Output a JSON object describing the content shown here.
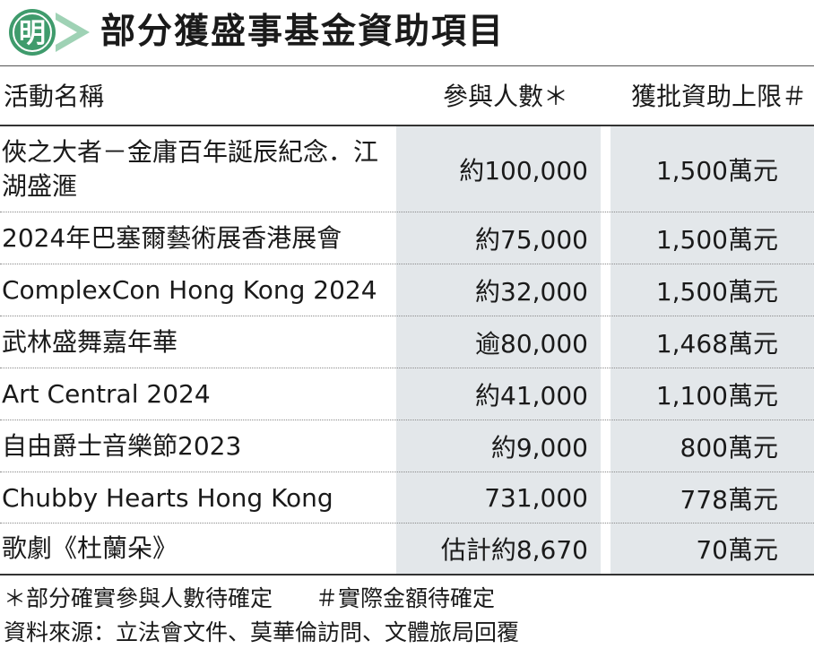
{
  "header": {
    "logo_char": "明",
    "title": "部分獲盛事基金資助項目"
  },
  "table": {
    "headers": {
      "name": "活動名稱",
      "attendance": "參與人數＊",
      "funding": "獲批資助上限＃"
    },
    "rows": [
      {
        "name": "俠之大者－金庸百年誕辰紀念．江湖盛滙",
        "attendance": "約100,000",
        "funding": "1,500萬元"
      },
      {
        "name": "2024年巴塞爾藝術展香港展會",
        "attendance": "約75,000",
        "funding": "1,500萬元"
      },
      {
        "name": "ComplexCon Hong Kong 2024",
        "attendance": "約32,000",
        "funding": "1,500萬元"
      },
      {
        "name": "武林盛舞嘉年華",
        "attendance": "逾80,000",
        "funding": "1,468萬元"
      },
      {
        "name": "Art Central 2024",
        "attendance": "約41,000",
        "funding": "1,100萬元"
      },
      {
        "name": "自由爵士音樂節2023",
        "attendance": "約9,000",
        "funding": "800萬元"
      },
      {
        "name": "Chubby Hearts Hong Kong",
        "attendance": "731,000",
        "funding": "778萬元"
      },
      {
        "name": "歌劇《杜蘭朵》",
        "attendance": "估計約8,670",
        "funding": "70萬元"
      }
    ]
  },
  "footer": {
    "note_attendance": "＊部分確實參與人數待確定",
    "note_funding": "＃實際金額待確定",
    "source": "資料來源：立法會文件、莫華倫訪問、文體旅局回覆"
  },
  "colors": {
    "logo_green": "#3f9b6c",
    "logo_dark": "#1e5a3a",
    "column_shade": "#e3e7ea"
  }
}
